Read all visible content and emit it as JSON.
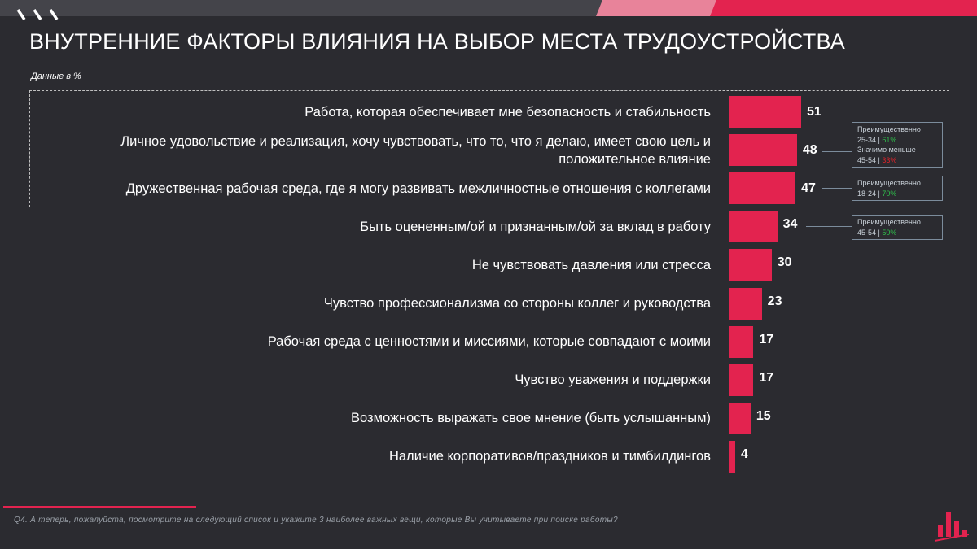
{
  "title": "ВНУТРЕННИЕ ФАКТОРЫ ВЛИЯНИЯ НА ВЫБОР МЕСТА ТРУДОУСТРОЙСТВА",
  "subtitle": "Данные в %",
  "footnote": "Q4. А теперь, пожалуйста, посмотрите на следующий список и укажите 3 наиболее важных вещи, которые Вы учитываете при поиске работы?",
  "colors": {
    "bar": "#e3234f",
    "background": "#2b2b30",
    "accent_green": "#2fbf4b",
    "accent_red": "#e0232a"
  },
  "chart_data": {
    "type": "bar",
    "orientation": "horizontal",
    "categories": [
      [
        "Работа, которая обеспечивает мне безопасность и стабильность"
      ],
      [
        "Личное удовольствие и реализация, хочу чувствовать, что то, что я делаю, имеет свою цель и",
        "положительное влияние"
      ],
      [
        "Дружественная рабочая среда, где я могу развивать межличностные отношения с коллегами"
      ],
      [
        "Быть оцененным/ой и признанным/ой за вклад в работу"
      ],
      [
        "Не чувствовать давления или стресса"
      ],
      [
        "Чувство профессионализма со стороны коллег и руководства"
      ],
      [
        "Рабочая среда с ценностями и миссиями, которые совпадают с моими"
      ],
      [
        "Чувство уважения и поддержки"
      ],
      [
        "Возможность выражать свое мнение (быть услышанным)"
      ],
      [
        "Наличие корпоративов/праздников и тимбилдингов"
      ]
    ],
    "values": [
      51,
      48,
      47,
      34,
      30,
      23,
      17,
      17,
      15,
      4
    ],
    "xlim": [
      0,
      51
    ],
    "highlighted_rows": 3,
    "legend": false,
    "grid": false
  },
  "notes": [
    {
      "row": 1,
      "lines": [
        {
          "label": "Преимущественно"
        },
        {
          "label": "25-34",
          "value": "61%",
          "color": "green"
        },
        {
          "label": "Значимо меньше"
        },
        {
          "label": "45-54",
          "value": "33%",
          "color": "red"
        }
      ]
    },
    {
      "row": 2,
      "lines": [
        {
          "label": "Преимущественно"
        },
        {
          "label": "18-24",
          "value": "70%",
          "color": "green"
        }
      ]
    },
    {
      "row": 3,
      "lines": [
        {
          "label": "Преимущественно"
        },
        {
          "label": "45-54",
          "value": "50%",
          "color": "green"
        }
      ]
    }
  ]
}
